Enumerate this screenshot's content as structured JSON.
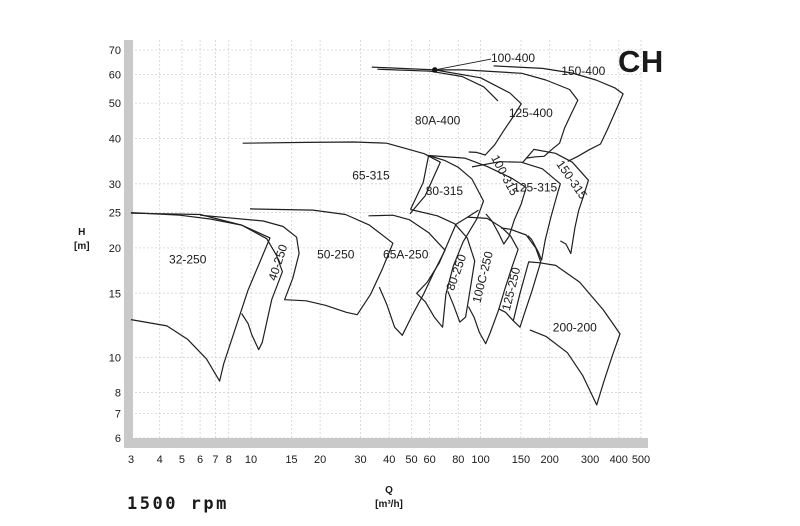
{
  "brand": "CH",
  "speed_label": "1500 rpm",
  "axis_labels": {
    "y_title": "H",
    "y_unit": "[m]",
    "x_title": "Q",
    "x_unit": "[m³/h]"
  },
  "chart_data": {
    "type": "line",
    "title": "",
    "xlabel": "Q [m³/h]",
    "ylabel": "H [m]",
    "xscale": "log",
    "yscale": "log",
    "xlim": [
      3,
      500
    ],
    "ylim": [
      6,
      70
    ],
    "grid": true,
    "xticks": [
      "3",
      "4",
      "5",
      "6",
      "7",
      "8",
      "10",
      "15",
      "20",
      "30",
      "40",
      "50",
      "60",
      "80",
      "100",
      "150",
      "200",
      "300",
      "400",
      "500"
    ],
    "yticks": [
      "6",
      "7",
      "8",
      "10",
      "15",
      "20",
      "25",
      "30",
      "40",
      "50",
      "60",
      "70"
    ],
    "series": [
      {
        "name": "32-250",
        "label_at": [
          5.3,
          18.5
        ],
        "points": [
          [
            3,
            12.7
          ],
          [
            4.3,
            12.2
          ],
          [
            5.3,
            11.2
          ],
          [
            6.4,
            9.9
          ],
          [
            7.3,
            8.6
          ],
          [
            7.6,
            9.6
          ],
          [
            9.7,
            15.3
          ],
          [
            12.1,
            21.3
          ],
          [
            9.1,
            23.1
          ],
          [
            6.7,
            24.0
          ],
          [
            4.9,
            24.6
          ],
          [
            3,
            25.0
          ]
        ]
      },
      {
        "name": "40-250",
        "label_at": [
          13.2,
          18.2
        ],
        "label_rotation": -72,
        "points": [
          [
            3,
            24.9
          ],
          [
            6.0,
            24.7
          ],
          [
            9.1,
            23.1
          ],
          [
            11.7,
            21.2
          ],
          [
            12.9,
            19.1
          ],
          [
            13.7,
            17.2
          ],
          [
            12.3,
            14.4
          ],
          [
            11.2,
            11.0
          ],
          [
            10.8,
            10.5
          ],
          [
            10.1,
            11.5
          ],
          [
            9.7,
            12.4
          ],
          [
            9.1,
            13.2
          ]
        ]
      },
      {
        "name": "50-250",
        "label_at": [
          23.4,
          19.1
        ],
        "points": [
          [
            9.9,
            25.6
          ],
          [
            18.6,
            25.4
          ],
          [
            25.8,
            24.7
          ],
          [
            32.8,
            23.1
          ],
          [
            41.5,
            20.6
          ],
          [
            37.2,
            17.4
          ],
          [
            33.2,
            14.9
          ],
          [
            29.0,
            13.1
          ],
          [
            26.0,
            13.3
          ],
          [
            21.1,
            13.9
          ],
          [
            17.4,
            14.3
          ],
          [
            14.0,
            14.4
          ],
          [
            15.2,
            16.5
          ],
          [
            16.2,
            19.3
          ],
          [
            15.8,
            21.4
          ],
          [
            13.8,
            22.9
          ],
          [
            11.3,
            23.7
          ],
          [
            6.0,
            24.6
          ]
        ]
      },
      {
        "name": "65A-250",
        "label_at": [
          47.2,
          19.1
        ],
        "points": [
          [
            32.5,
            24.5
          ],
          [
            41.5,
            24.6
          ],
          [
            49.0,
            23.9
          ],
          [
            59.5,
            22.0
          ],
          [
            70.0,
            19.7
          ],
          [
            63.4,
            17.4
          ],
          [
            56.7,
            15.0
          ],
          [
            50.2,
            13.0
          ],
          [
            45.6,
            11.5
          ],
          [
            42.2,
            12.1
          ],
          [
            39.0,
            14.0
          ],
          [
            36.2,
            15.6
          ]
        ]
      },
      {
        "name": "65-315",
        "label_at": [
          33.3,
          31.5
        ],
        "points": [
          [
            9.2,
            38.8
          ],
          [
            17.3,
            39.0
          ],
          [
            28.0,
            39.1
          ],
          [
            39.0,
            38.8
          ],
          [
            56.8,
            36.3
          ],
          [
            66.8,
            34.4
          ],
          [
            57.4,
            27.8
          ],
          [
            49.2,
            24.8
          ]
        ]
      },
      {
        "name": "80-315",
        "label_at": [
          69.6,
          28.5
        ],
        "points": [
          [
            49.5,
            25.5
          ],
          [
            56.3,
            30.3
          ],
          [
            59.4,
            35.9
          ],
          [
            69.7,
            34.8
          ],
          [
            80.0,
            33.3
          ],
          [
            91.8,
            30.9
          ],
          [
            103.0,
            26.9
          ],
          [
            96.6,
            24.1
          ],
          [
            84.0,
            20.8
          ],
          [
            76.0,
            17.8
          ],
          [
            70.6,
            14.9
          ],
          [
            68.3,
            12.1
          ],
          [
            62.9,
            12.9
          ],
          [
            57.5,
            14.2
          ],
          [
            52.7,
            15.0
          ],
          [
            58.6,
            16.1
          ],
          [
            66.2,
            18.2
          ],
          [
            78.1,
            23.2
          ],
          [
            87.8,
            24.3
          ],
          [
            98.0,
            25.4
          ]
        ]
      },
      {
        "name": "80-250",
        "label_at": [
          79.0,
          17.1
        ],
        "label_rotation": -70,
        "points": [
          [
            49.5,
            25.5
          ],
          [
            64.8,
            24.5
          ],
          [
            77.1,
            23.3
          ],
          [
            87.5,
            21.3
          ],
          [
            94.3,
            18.4
          ],
          [
            89.9,
            15.2
          ],
          [
            86.1,
            12.9
          ],
          [
            81.2,
            12.5
          ],
          [
            76.3,
            13.9
          ],
          [
            72.0,
            15.2
          ]
        ]
      },
      {
        "name": "100-315",
        "label_at": [
          126.5,
          31.6
        ],
        "label_rotation": 62,
        "points": [
          [
            59.4,
            35.9
          ],
          [
            85.3,
            35.3
          ],
          [
            106.8,
            33.5
          ],
          [
            137.6,
            31.0
          ],
          [
            158.0,
            29.3
          ],
          [
            150.3,
            26.4
          ],
          [
            140.4,
            23.9
          ],
          [
            133.0,
            21.5
          ],
          [
            126.3,
            20.5
          ],
          [
            120.4,
            21.8
          ],
          [
            112.1,
            23.7
          ],
          [
            105.5,
            24.8
          ]
        ]
      },
      {
        "name": "100C-250",
        "label_at": [
          103.0,
          16.6
        ],
        "label_rotation": -76,
        "points": [
          [
            87.5,
            24.3
          ],
          [
            106.8,
            24.1
          ],
          [
            123.3,
            22.8
          ],
          [
            134.9,
            21.6
          ],
          [
            145.8,
            19.8
          ],
          [
            137.3,
            17.8
          ],
          [
            126.7,
            15.2
          ],
          [
            119.8,
            13.5
          ],
          [
            110.3,
            11.7
          ],
          [
            105.3,
            10.9
          ],
          [
            98.8,
            11.7
          ],
          [
            93.6,
            12.9
          ],
          [
            88.5,
            13.8
          ]
        ]
      },
      {
        "name": "125-250",
        "label_at": [
          137.0,
          15.4
        ],
        "label_rotation": -76,
        "points": [
          [
            122.6,
            22.7
          ],
          [
            135.0,
            22.5
          ],
          [
            158.0,
            21.7
          ],
          [
            173.8,
            20.0
          ],
          [
            182.9,
            18.3
          ],
          [
            167.3,
            15.2
          ],
          [
            155.9,
            13.3
          ],
          [
            148.6,
            12.1
          ],
          [
            138.9,
            12.6
          ],
          [
            128.6,
            13.3
          ],
          [
            119.8,
            13.6
          ]
        ]
      },
      {
        "name": "200-200",
        "label_at": [
          257.4,
          12.0
        ],
        "points": [
          [
            138.9,
            12.6
          ],
          [
            148.6,
            15.0
          ],
          [
            162.1,
            18.3
          ],
          [
            179.9,
            18.2
          ],
          [
            212.5,
            17.9
          ],
          [
            270.0,
            16.1
          ],
          [
            342.5,
            13.5
          ],
          [
            404.9,
            11.6
          ],
          [
            374.8,
            10.1
          ],
          [
            345.0,
            8.6
          ],
          [
            320.5,
            7.4
          ],
          [
            279.0,
            8.9
          ],
          [
            239.0,
            10.3
          ],
          [
            193.3,
            11.4
          ],
          [
            163.8,
            11.9
          ]
        ]
      },
      {
        "name": "125-315",
        "label_at": [
          173.0,
          29.2
        ],
        "points": [
          [
            91.8,
            33.4
          ],
          [
            121.2,
            34.5
          ],
          [
            150.3,
            34.4
          ],
          [
            185.9,
            33.0
          ],
          [
            222.5,
            30.0
          ],
          [
            212.0,
            27.0
          ],
          [
            202.5,
            24.3
          ],
          [
            191.3,
            21.0
          ],
          [
            184.5,
            18.5
          ],
          [
            179.0,
            19.4
          ],
          [
            166.8,
            21.1
          ],
          [
            160.8,
            21.6
          ]
        ]
      },
      {
        "name": "150-315",
        "label_at": [
          248.0,
          30.7
        ],
        "label_rotation": 55,
        "points": [
          [
            152.3,
            34.3
          ],
          [
            170.7,
            37.3
          ],
          [
            212.0,
            36.4
          ],
          [
            251.0,
            34.4
          ],
          [
            295.0,
            30.7
          ],
          [
            281.0,
            27.8
          ],
          [
            267.4,
            25.3
          ],
          [
            257.8,
            22.8
          ],
          [
            247.2,
            19.3
          ],
          [
            235.5,
            20.5
          ],
          [
            222.5,
            20.9
          ]
        ]
      },
      {
        "name": "80A-400",
        "label_at": [
          65.0,
          44.5
        ],
        "points": [
          [
            35.5,
            62.0
          ],
          [
            60.3,
            61.2
          ],
          [
            83.1,
            59.2
          ],
          [
            103.4,
            55.4
          ],
          [
            119.1,
            50.7
          ]
        ]
      },
      {
        "name": "100-400",
        "label_at": [
          138.5,
          66.1
        ],
        "marker": [
          63.2,
          61.7
        ],
        "points": [
          [
            33.6,
            62.8
          ],
          [
            63.2,
            61.7
          ],
          [
            100.0,
            58.7
          ],
          [
            134.2,
            53.3
          ],
          [
            150.5,
            49.8
          ],
          [
            137.5,
            45.5
          ],
          [
            125.5,
            41.8
          ],
          [
            115.2,
            38.4
          ],
          [
            104.8,
            36.0
          ],
          [
            96.2,
            36.6
          ],
          [
            88.8,
            36.7
          ]
        ]
      },
      {
        "name": "125-400",
        "label_at": [
          165.6,
          46.8
        ],
        "points": [
          [
            63.2,
            61.7
          ],
          [
            85.3,
            61.7
          ],
          [
            151.2,
            60.4
          ],
          [
            192.5,
            57.9
          ],
          [
            244.2,
            54.5
          ],
          [
            265.2,
            50.9
          ],
          [
            249.4,
            47.0
          ],
          [
            232.6,
            42.8
          ],
          [
            220.9,
            38.8
          ],
          [
            207.5,
            37.6
          ],
          [
            189.1,
            35.7
          ],
          [
            173.9,
            35.6
          ],
          [
            158.0,
            35.3
          ]
        ]
      },
      {
        "name": "150-400",
        "label_at": [
          280.3,
          60.9
        ],
        "points": [
          [
            114.0,
            63.3
          ],
          [
            186.0,
            62.3
          ],
          [
            250.0,
            60.5
          ],
          [
            318.5,
            57.9
          ],
          [
            386.0,
            55.0
          ],
          [
            418.0,
            53.0
          ],
          [
            390.0,
            48.0
          ],
          [
            357.0,
            42.3
          ],
          [
            333.0,
            38.6
          ],
          [
            297.0,
            37.2
          ],
          [
            263.0,
            35.6
          ],
          [
            240.0,
            34.6
          ]
        ]
      }
    ]
  }
}
